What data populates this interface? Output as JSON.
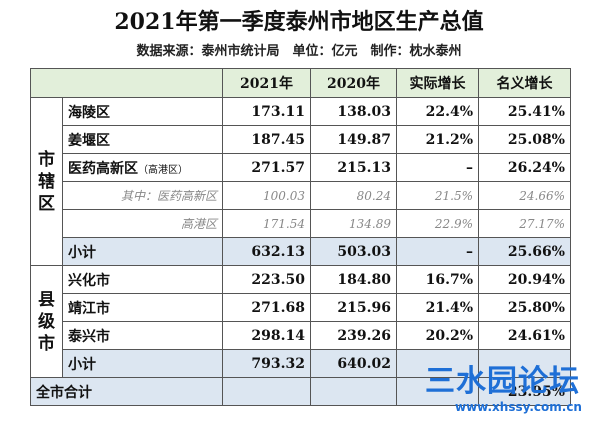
{
  "title": "2021年第一季度泰州市地区生产总值",
  "subtitle": "数据来源：泰州市统计局　单位：亿元　制作：枕水泰州",
  "table": {
    "header": [
      "2021年",
      "2020年",
      "实际增长",
      "名义增长"
    ],
    "groups": [
      {
        "label": "市辖区",
        "rows": [
          {
            "name": "海陵区",
            "values": [
              "173.11",
              "138.03",
              "22.4%",
              "25.41%"
            ]
          },
          {
            "name": "姜堰区",
            "values": [
              "187.45",
              "149.87",
              "21.2%",
              "25.08%"
            ]
          },
          {
            "name": "医药高新区",
            "note": "（高港区）",
            "values": [
              "271.57",
              "215.13",
              "–",
              "26.24%"
            ]
          },
          {
            "name": "其中：医药高新区",
            "style": "detail",
            "values": [
              "100.03",
              "80.24",
              "21.5%",
              "24.66%"
            ]
          },
          {
            "name": "高港区",
            "style": "detail",
            "values": [
              "171.54",
              "134.89",
              "22.9%",
              "27.17%"
            ]
          },
          {
            "name": "小计",
            "style": "subtotal",
            "values": [
              "632.13",
              "503.03",
              "–",
              "25.66%"
            ]
          }
        ]
      },
      {
        "label": "县级市",
        "rows": [
          {
            "name": "兴化市",
            "values": [
              "223.50",
              "184.80",
              "16.7%",
              "20.94%"
            ]
          },
          {
            "name": "靖江市",
            "values": [
              "271.68",
              "215.96",
              "21.4%",
              "25.80%"
            ]
          },
          {
            "name": "泰兴市",
            "values": [
              "298.14",
              "239.26",
              "20.2%",
              "24.61%"
            ]
          },
          {
            "name": "小计",
            "style": "subtotal",
            "values": [
              "793.32",
              "640.02",
              null,
              null
            ]
          }
        ]
      }
    ],
    "total": {
      "name": "全市合计",
      "values": [
        null,
        null,
        null,
        "23.95%"
      ]
    }
  },
  "watermark": {
    "text": "三水园论坛",
    "url": "www.xhssy.com.cn"
  }
}
